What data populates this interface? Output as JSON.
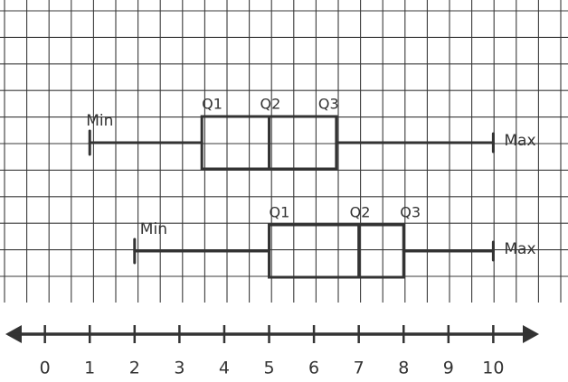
{
  "chart_data": {
    "type": "box",
    "boxes": [
      {
        "min": 1,
        "q1": 3.5,
        "median": 5,
        "q3": 6.5,
        "max": 10,
        "labels": [
          "Min",
          "Q1",
          "Q2",
          "Q3",
          "Max"
        ]
      },
      {
        "min": 2,
        "q1": 5,
        "median": 7,
        "q3": 8,
        "max": 10,
        "labels": [
          "Min",
          "Q1",
          "Q2",
          "Q3",
          "Max"
        ]
      }
    ],
    "xlim": [
      -0.8,
      10.9
    ],
    "xticks": [
      0,
      1,
      2,
      3,
      4,
      5,
      6,
      7,
      8,
      9,
      10
    ],
    "grid": true,
    "color": "#333333"
  }
}
